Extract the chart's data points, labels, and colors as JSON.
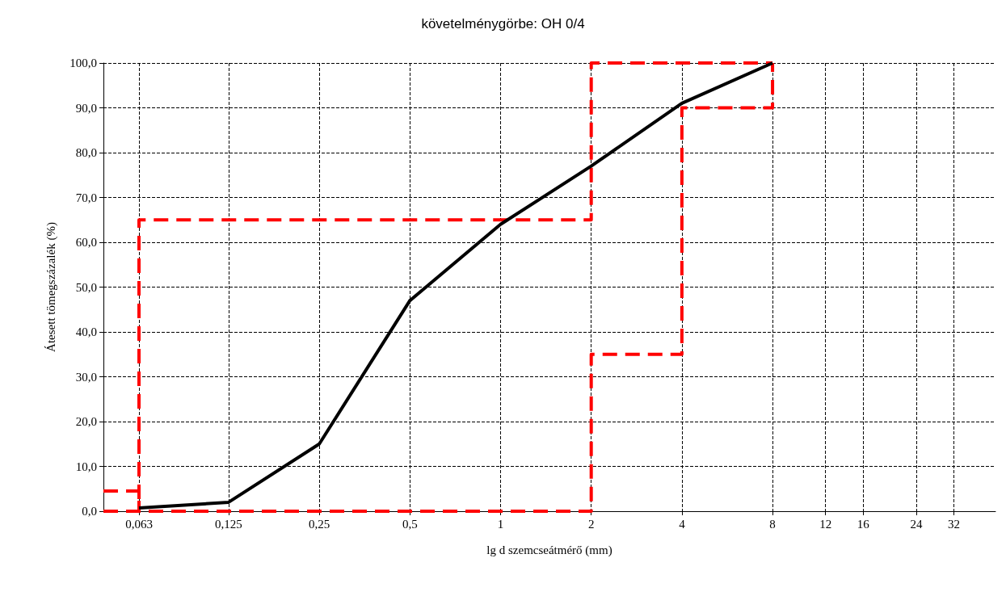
{
  "chart_data": {
    "type": "line",
    "title": "követelménygörbe: OH 0/4",
    "xlabel": "lg d szemcseátmérő (mm)",
    "ylabel": "Átesett tömegszázalék (%)",
    "log": "x",
    "grid": true,
    "marker": "none",
    "xlim": [
      0.048,
      44
    ],
    "xticks": [
      {
        "value": 0.063,
        "label": "0,063"
      },
      {
        "value": 0.125,
        "label": "0,125"
      },
      {
        "value": 0.25,
        "label": "0,25"
      },
      {
        "value": 0.5,
        "label": "0,5"
      },
      1,
      2,
      4,
      8,
      12,
      16,
      24,
      32
    ],
    "ylim": [
      0,
      100
    ],
    "yticks": [
      {
        "value": 0,
        "label": "0,0"
      },
      {
        "value": 10,
        "label": "10,0"
      },
      {
        "value": 20,
        "label": "20,0"
      },
      {
        "value": 30,
        "label": "30,0"
      },
      {
        "value": 40,
        "label": "40,0"
      },
      {
        "value": 50,
        "label": "50,0"
      },
      {
        "value": 60,
        "label": "60,0"
      },
      {
        "value": 70,
        "label": "70,0"
      },
      {
        "value": 80,
        "label": "80,0"
      },
      {
        "value": 90,
        "label": "90,0"
      },
      {
        "value": 100,
        "label": "100,0"
      }
    ],
    "series": [
      {
        "color": "#ff0000",
        "line_style": "dashed",
        "x": [
          0.048,
          2,
          2,
          4,
          4,
          8,
          8
        ],
        "values": [
          0,
          0,
          35,
          35,
          90,
          90,
          100
        ]
      },
      {
        "color": "#ff0000",
        "line_style": "dashed",
        "x": [
          0.048,
          0.063,
          0.063,
          0.063,
          2,
          2,
          8
        ],
        "values": [
          4.5,
          4.5,
          0,
          65,
          65,
          100,
          100
        ]
      },
      {
        "color": "#000000",
        "line_style": "solid",
        "x": [
          0.063,
          0.125,
          0.25,
          0.5,
          1,
          2,
          4,
          8
        ],
        "values": [
          0.7,
          2,
          15,
          47,
          64,
          77,
          91,
          100
        ]
      }
    ]
  }
}
